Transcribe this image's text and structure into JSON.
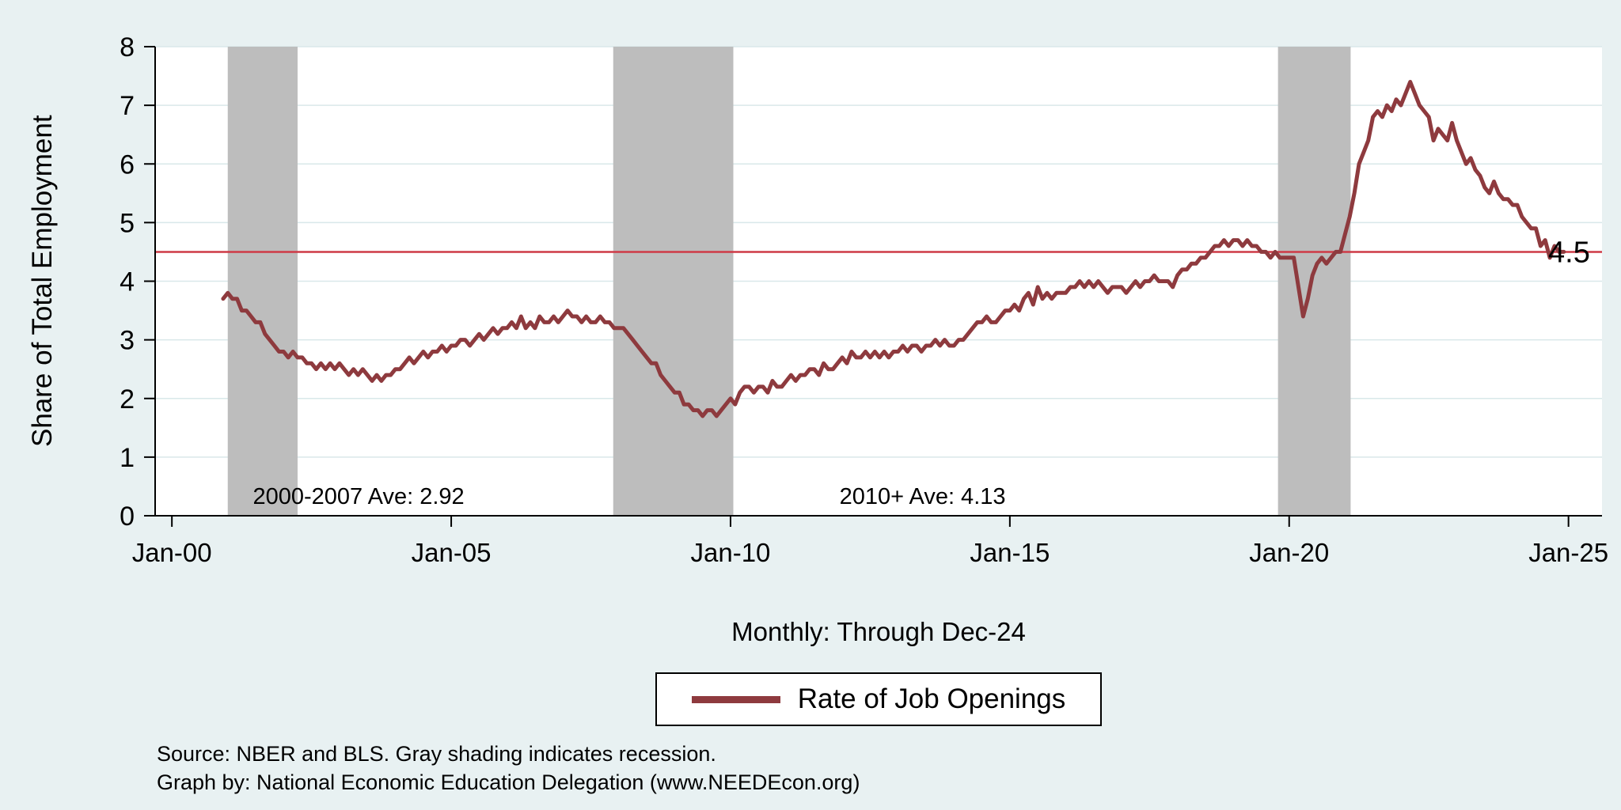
{
  "colors": {
    "background": "#e8f1f2",
    "plot_background": "#ffffff",
    "grid": "#d9e8ea",
    "recession_shading": "#bdbdbd",
    "series_line": "#8e3a3e",
    "reference_line": "#ce3a46",
    "axis": "#000000"
  },
  "figure": {
    "notes": {
      "source": "Source: NBER and BLS. Gray shading indicates recession.",
      "credit": "Graph by: National Economic Education Delegation (www.NEEDEcon.org)"
    }
  },
  "chart_data": {
    "type": "line",
    "title": "",
    "ylabel": "Share of Total Employment",
    "xlabel": "Monthly: Through Dec-24",
    "ylim": [
      0,
      8
    ],
    "xlim": [
      1999.7,
      2025.6
    ],
    "grid": true,
    "legend_position": "bottom",
    "y_ticks": [
      0,
      1,
      2,
      3,
      4,
      5,
      6,
      7,
      8
    ],
    "x_ticks": [
      {
        "value": 2000,
        "label": "Jan-00"
      },
      {
        "value": 2005,
        "label": "Jan-05"
      },
      {
        "value": 2010,
        "label": "Jan-10"
      },
      {
        "value": 2015,
        "label": "Jan-15"
      },
      {
        "value": 2020,
        "label": "Jan-20"
      },
      {
        "value": 2025,
        "label": "Jan-25"
      }
    ],
    "reference_line": {
      "y": 4.5,
      "label": "4.5",
      "color": "#ce3a46"
    },
    "recession_bands": [
      [
        2001.0,
        2002.25
      ],
      [
        2007.9,
        2010.05
      ],
      [
        2019.8,
        2021.1
      ]
    ],
    "annotations": [
      {
        "text": "2000-2007 Ave: 2.92",
        "x": 2001.45,
        "y": 0.2
      },
      {
        "text": "2010+ Ave: 4.13",
        "x": 2011.95,
        "y": 0.2
      }
    ],
    "series": [
      {
        "name": "Rate of Job Openings",
        "color": "#8e3a3e",
        "frequency": "monthly",
        "start_year": 2000,
        "start_month": 12,
        "values": [
          3.7,
          3.8,
          3.7,
          3.7,
          3.5,
          3.5,
          3.4,
          3.3,
          3.3,
          3.1,
          3.0,
          2.9,
          2.8,
          2.8,
          2.7,
          2.8,
          2.7,
          2.7,
          2.6,
          2.6,
          2.5,
          2.6,
          2.5,
          2.6,
          2.5,
          2.6,
          2.5,
          2.4,
          2.5,
          2.4,
          2.5,
          2.4,
          2.3,
          2.4,
          2.3,
          2.4,
          2.4,
          2.5,
          2.5,
          2.6,
          2.7,
          2.6,
          2.7,
          2.8,
          2.7,
          2.8,
          2.8,
          2.9,
          2.8,
          2.9,
          2.9,
          3.0,
          3.0,
          2.9,
          3.0,
          3.1,
          3.0,
          3.1,
          3.2,
          3.1,
          3.2,
          3.2,
          3.3,
          3.2,
          3.4,
          3.2,
          3.3,
          3.2,
          3.4,
          3.3,
          3.3,
          3.4,
          3.3,
          3.4,
          3.5,
          3.4,
          3.4,
          3.3,
          3.4,
          3.3,
          3.3,
          3.4,
          3.3,
          3.3,
          3.2,
          3.2,
          3.2,
          3.1,
          3.0,
          2.9,
          2.8,
          2.7,
          2.6,
          2.6,
          2.4,
          2.3,
          2.2,
          2.1,
          2.1,
          1.9,
          1.9,
          1.8,
          1.8,
          1.7,
          1.8,
          1.8,
          1.7,
          1.8,
          1.9,
          2.0,
          1.9,
          2.1,
          2.2,
          2.2,
          2.1,
          2.2,
          2.2,
          2.1,
          2.3,
          2.2,
          2.2,
          2.3,
          2.4,
          2.3,
          2.4,
          2.4,
          2.5,
          2.5,
          2.4,
          2.6,
          2.5,
          2.5,
          2.6,
          2.7,
          2.6,
          2.8,
          2.7,
          2.7,
          2.8,
          2.7,
          2.8,
          2.7,
          2.8,
          2.7,
          2.8,
          2.8,
          2.9,
          2.8,
          2.9,
          2.9,
          2.8,
          2.9,
          2.9,
          3.0,
          2.9,
          3.0,
          2.9,
          2.9,
          3.0,
          3.0,
          3.1,
          3.2,
          3.3,
          3.3,
          3.4,
          3.3,
          3.3,
          3.4,
          3.5,
          3.5,
          3.6,
          3.5,
          3.7,
          3.8,
          3.6,
          3.9,
          3.7,
          3.8,
          3.7,
          3.8,
          3.8,
          3.8,
          3.9,
          3.9,
          4.0,
          3.9,
          4.0,
          3.9,
          4.0,
          3.9,
          3.8,
          3.9,
          3.9,
          3.9,
          3.8,
          3.9,
          4.0,
          3.9,
          4.0,
          4.0,
          4.1,
          4.0,
          4.0,
          4.0,
          3.9,
          4.1,
          4.2,
          4.2,
          4.3,
          4.3,
          4.4,
          4.4,
          4.5,
          4.6,
          4.6,
          4.7,
          4.6,
          4.7,
          4.7,
          4.6,
          4.7,
          4.6,
          4.6,
          4.5,
          4.5,
          4.4,
          4.5,
          4.4,
          4.4,
          4.4,
          4.4,
          3.9,
          3.4,
          3.7,
          4.1,
          4.3,
          4.4,
          4.3,
          4.4,
          4.5,
          4.5,
          4.8,
          5.1,
          5.5,
          6.0,
          6.2,
          6.4,
          6.8,
          6.9,
          6.8,
          7.0,
          6.9,
          7.1,
          7.0,
          7.2,
          7.4,
          7.2,
          7.0,
          6.9,
          6.8,
          6.4,
          6.6,
          6.5,
          6.4,
          6.7,
          6.4,
          6.2,
          6.0,
          6.1,
          5.9,
          5.8,
          5.6,
          5.5,
          5.7,
          5.5,
          5.4,
          5.4,
          5.3,
          5.3,
          5.1,
          5.0,
          4.9,
          4.9,
          4.6,
          4.7,
          4.4,
          4.6,
          4.5,
          4.5
        ]
      }
    ]
  }
}
